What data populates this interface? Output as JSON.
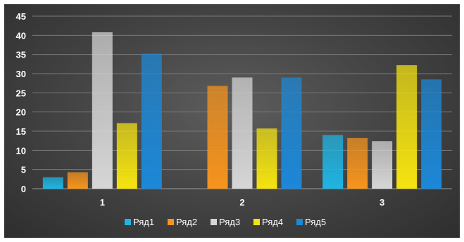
{
  "chart_data": {
    "type": "bar",
    "categories": [
      "1",
      "2",
      "3"
    ],
    "series": [
      {
        "name": "Ряд1",
        "color": "#1fb4e3",
        "values": [
          3,
          0,
          14
        ]
      },
      {
        "name": "Ряд2",
        "color": "#f7941d",
        "values": [
          4.3,
          26.8,
          13.2
        ]
      },
      {
        "name": "Ряд3",
        "color": "#d6d6d6",
        "values": [
          40.8,
          29,
          12.4
        ]
      },
      {
        "name": "Ряд4",
        "color": "#f5e410",
        "values": [
          17.1,
          15.7,
          32.2
        ]
      },
      {
        "name": "Ряд5",
        "color": "#1c88d8",
        "values": [
          35.2,
          29,
          28.5
        ]
      }
    ],
    "ylim": [
      0,
      45
    ],
    "yticks": [
      "0",
      "5",
      "10",
      "15",
      "20",
      "25",
      "30",
      "35",
      "40",
      "45"
    ],
    "grid": true,
    "legend": "bottom",
    "title": "",
    "xlabel": "",
    "ylabel": ""
  }
}
